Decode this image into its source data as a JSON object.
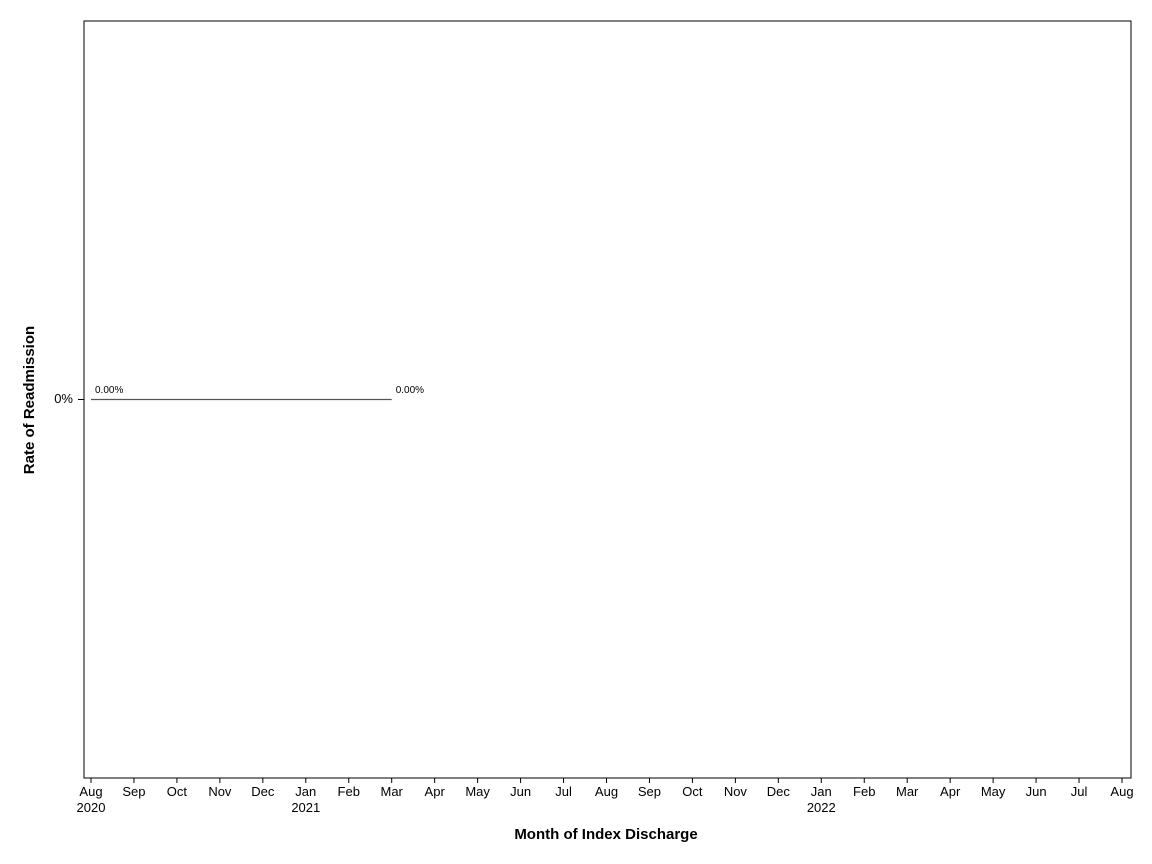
{
  "chart_data": {
    "type": "line",
    "x_label": "Month of Index Discharge",
    "y_label": "Rate of Readmission",
    "x": [
      "2020-08",
      "2020-09",
      "2020-10",
      "2020-11",
      "2020-12",
      "2021-01",
      "2021-02",
      "2021-03"
    ],
    "series": [
      {
        "color": "#555555",
        "values": [
          0,
          0,
          0,
          0,
          0,
          0,
          0,
          0
        ],
        "value_labels": [
          "0.00%",
          null,
          null,
          null,
          null,
          null,
          null,
          "0.00%"
        ]
      }
    ],
    "xlim": [
      "2020-08",
      "2022-08"
    ],
    "xticks": [
      {
        "value": "2020-08",
        "label": "Aug\n2020"
      },
      {
        "value": "2020-09",
        "label": "Sep"
      },
      {
        "value": "2020-10",
        "label": "Oct"
      },
      {
        "value": "2020-11",
        "label": "Nov"
      },
      {
        "value": "2020-12",
        "label": "Dec"
      },
      {
        "value": "2021-01",
        "label": "Jan\n2021"
      },
      {
        "value": "2021-02",
        "label": "Feb"
      },
      {
        "value": "2021-03",
        "label": "Mar"
      },
      {
        "value": "2021-04",
        "label": "Apr"
      },
      {
        "value": "2021-05",
        "label": "May"
      },
      {
        "value": "2021-06",
        "label": "Jun"
      },
      {
        "value": "2021-07",
        "label": "Jul"
      },
      {
        "value": "2021-08",
        "label": "Aug"
      },
      {
        "value": "2021-09",
        "label": "Sep"
      },
      {
        "value": "2021-10",
        "label": "Oct"
      },
      {
        "value": "2021-11",
        "label": "Nov"
      },
      {
        "value": "2021-12",
        "label": "Dec"
      },
      {
        "value": "2022-01",
        "label": "Jan\n2022"
      },
      {
        "value": "2022-02",
        "label": "Feb"
      },
      {
        "value": "2022-03",
        "label": "Mar"
      },
      {
        "value": "2022-04",
        "label": "Apr"
      },
      {
        "value": "2022-05",
        "label": "May"
      },
      {
        "value": "2022-06",
        "label": "Jun"
      },
      {
        "value": "2022-07",
        "label": "Jul"
      },
      {
        "value": "2022-08",
        "label": "Aug"
      }
    ],
    "ylim": [
      -1,
      1
    ],
    "yticks": [
      {
        "value": 0,
        "label": "0%"
      }
    ]
  }
}
